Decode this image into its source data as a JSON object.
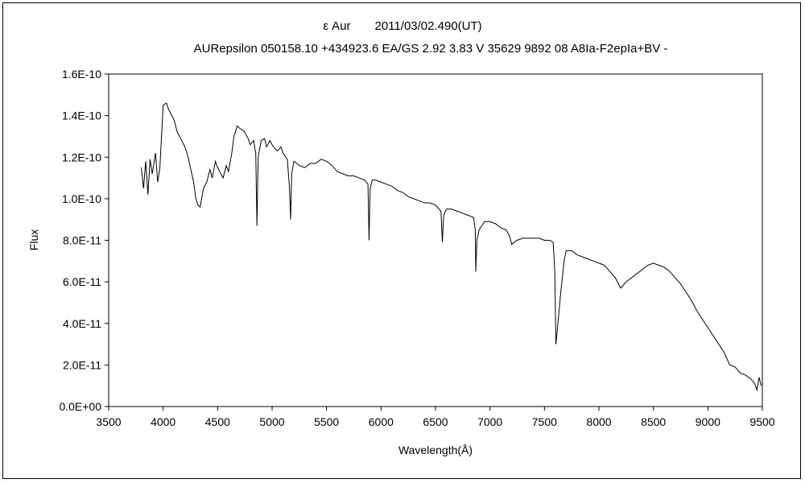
{
  "chart_data": {
    "type": "line",
    "title": "ε Aur",
    "title_date": "2011/03/02.490(UT)",
    "subtitle": "AURepsilon 050158.10 +434923.6 EA/GS 2.92 3.83 V 35629 9892 08 A8Ia-F2epIa+BV -",
    "xlabel": "Wavelength(Å)",
    "ylabel": "Flux",
    "xlim": [
      3500,
      9500
    ],
    "ylim": [
      0,
      1.6e-10
    ],
    "x_ticks": [
      3500,
      4000,
      4500,
      5000,
      5500,
      6000,
      6500,
      7000,
      7500,
      8000,
      8500,
      9000,
      9500
    ],
    "x_tick_labels": [
      "3500",
      "4000",
      "4500",
      "5000",
      "5500",
      "6000",
      "6500",
      "7000",
      "7500",
      "8000",
      "8500",
      "9000",
      "9500"
    ],
    "y_ticks": [
      0,
      2e-11,
      4e-11,
      6e-11,
      8e-11,
      1e-10,
      1.2e-10,
      1.4e-10,
      1.6e-10
    ],
    "y_tick_labels": [
      "0.0E+00",
      "2.0E-11",
      "4.0E-11",
      "6.0E-11",
      "8.0E-11",
      "1.0E-10",
      "1.2E-10",
      "1.4E-10",
      "1.6E-10"
    ],
    "grid": false,
    "legend": "none",
    "line_color": "#000000",
    "series": [
      {
        "name": "Flux",
        "unit_scale": 1e-11,
        "x": [
          3800,
          3820,
          3840,
          3860,
          3880,
          3900,
          3930,
          3950,
          3970,
          4000,
          4030,
          4050,
          4080,
          4100,
          4130,
          4150,
          4180,
          4200,
          4230,
          4250,
          4280,
          4300,
          4320,
          4340,
          4370,
          4400,
          4430,
          4450,
          4480,
          4500,
          4530,
          4550,
          4580,
          4600,
          4630,
          4650,
          4680,
          4700,
          4730,
          4750,
          4780,
          4800,
          4830,
          4850,
          4861,
          4872,
          4900,
          4930,
          4950,
          4980,
          5000,
          5030,
          5050,
          5080,
          5100,
          5140,
          5160,
          5170,
          5180,
          5200,
          5250,
          5300,
          5350,
          5400,
          5450,
          5500,
          5550,
          5600,
          5650,
          5700,
          5750,
          5800,
          5850,
          5880,
          5890,
          5900,
          5920,
          5950,
          6000,
          6050,
          6100,
          6150,
          6200,
          6250,
          6300,
          6350,
          6400,
          6450,
          6500,
          6550,
          6563,
          6575,
          6600,
          6650,
          6700,
          6750,
          6800,
          6850,
          6865,
          6870,
          6880,
          6900,
          6950,
          7000,
          7050,
          7100,
          7150,
          7180,
          7200,
          7220,
          7250,
          7300,
          7350,
          7400,
          7450,
          7500,
          7550,
          7580,
          7595,
          7605,
          7620,
          7650,
          7680,
          7700,
          7750,
          7800,
          7850,
          7900,
          7950,
          8000,
          8050,
          8100,
          8150,
          8200,
          8250,
          8300,
          8350,
          8400,
          8450,
          8500,
          8550,
          8600,
          8650,
          8700,
          8750,
          8800,
          8850,
          8900,
          8950,
          9000,
          9050,
          9100,
          9150,
          9200,
          9250,
          9300,
          9350,
          9400,
          9430,
          9450,
          9470,
          9490
        ],
        "y": [
          11.5,
          10.5,
          11.8,
          10.2,
          11.9,
          11.2,
          12.2,
          10.8,
          11.5,
          14.5,
          14.6,
          14.3,
          14.0,
          13.8,
          13.2,
          13.0,
          12.7,
          12.5,
          12.0,
          11.5,
          10.8,
          10.0,
          9.7,
          9.6,
          10.5,
          10.8,
          11.4,
          11.0,
          11.8,
          11.5,
          11.2,
          11.0,
          11.6,
          11.3,
          12.2,
          13.0,
          13.5,
          13.4,
          13.3,
          13.2,
          12.9,
          12.6,
          12.8,
          12.2,
          8.7,
          12.0,
          12.8,
          12.9,
          12.5,
          12.8,
          12.6,
          12.4,
          12.3,
          12.5,
          12.2,
          11.9,
          10.5,
          9.0,
          11.2,
          11.8,
          11.6,
          11.5,
          11.7,
          11.7,
          11.9,
          11.8,
          11.6,
          11.3,
          11.2,
          11.1,
          11.1,
          11.0,
          10.9,
          10.7,
          8.0,
          10.5,
          10.9,
          10.9,
          10.8,
          10.7,
          10.6,
          10.4,
          10.3,
          10.1,
          10.0,
          9.9,
          9.8,
          9.8,
          9.7,
          9.4,
          7.9,
          9.2,
          9.5,
          9.5,
          9.4,
          9.3,
          9.2,
          9.1,
          8.5,
          6.5,
          8.0,
          8.5,
          8.9,
          8.9,
          8.8,
          8.6,
          8.5,
          8.2,
          7.8,
          7.9,
          8.0,
          8.1,
          8.1,
          8.1,
          8.1,
          8.0,
          8.0,
          7.9,
          6.5,
          3.0,
          3.8,
          5.5,
          7.0,
          7.5,
          7.5,
          7.3,
          7.2,
          7.1,
          7.0,
          6.9,
          6.8,
          6.5,
          6.2,
          5.7,
          6.0,
          6.2,
          6.4,
          6.6,
          6.8,
          6.9,
          6.8,
          6.7,
          6.5,
          6.2,
          5.9,
          5.5,
          5.1,
          4.6,
          4.2,
          3.8,
          3.4,
          3.0,
          2.6,
          2.0,
          1.9,
          1.6,
          1.5,
          1.3,
          1.1,
          0.8,
          1.4,
          1.0
        ]
      }
    ]
  }
}
